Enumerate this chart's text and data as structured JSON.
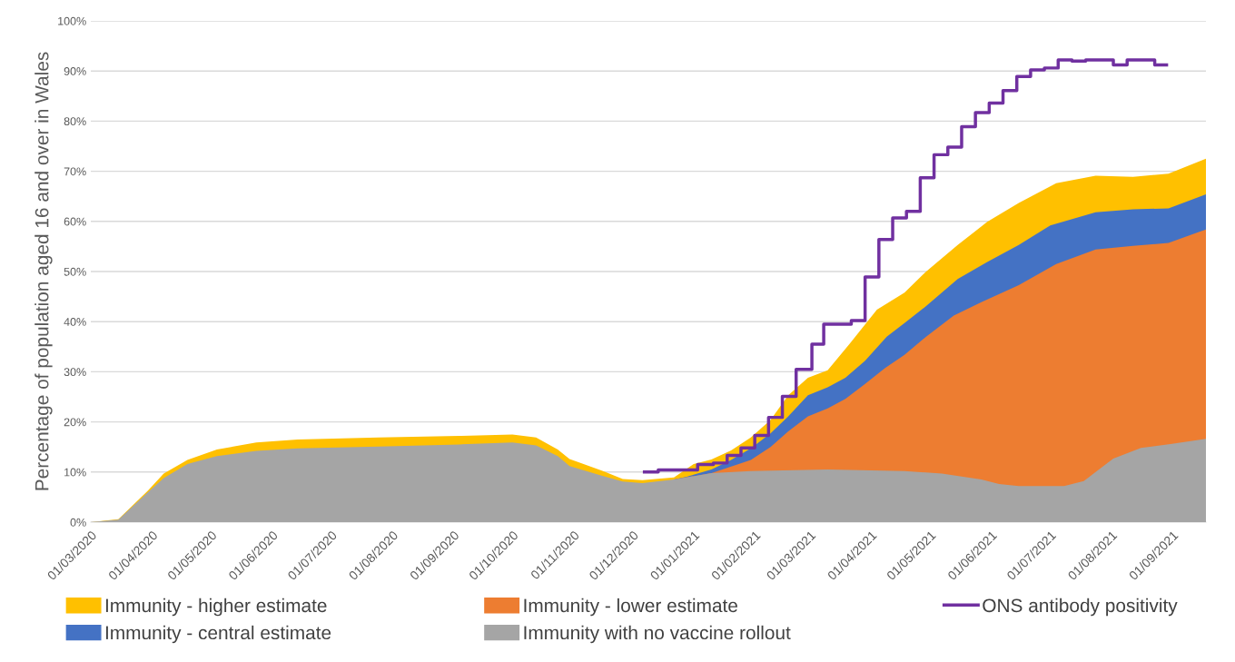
{
  "chart_data": {
    "type": "area",
    "ylabel": "Percentage of population aged 16 and over in Wales",
    "xlim": [
      "2020-03-01",
      "2021-09-18"
    ],
    "xticks": [
      {
        "value": "2020-03-01",
        "label": "01/03/2020"
      },
      {
        "value": "2020-04-01",
        "label": "01/04/2020"
      },
      {
        "value": "2020-05-01",
        "label": "01/05/2020"
      },
      {
        "value": "2020-06-01",
        "label": "01/06/2020"
      },
      {
        "value": "2020-07-01",
        "label": "01/07/2020"
      },
      {
        "value": "2020-08-01",
        "label": "01/08/2020"
      },
      {
        "value": "2020-09-01",
        "label": "01/09/2020"
      },
      {
        "value": "2020-10-01",
        "label": "01/10/2020"
      },
      {
        "value": "2020-11-01",
        "label": "01/11/2020"
      },
      {
        "value": "2020-12-01",
        "label": "01/12/2020"
      },
      {
        "value": "2021-01-01",
        "label": "01/01/2021"
      },
      {
        "value": "2021-02-01",
        "label": "01/02/2021"
      },
      {
        "value": "2021-03-01",
        "label": "01/03/2021"
      },
      {
        "value": "2021-04-01",
        "label": "01/04/2021"
      },
      {
        "value": "2021-05-01",
        "label": "01/05/2021"
      },
      {
        "value": "2021-06-01",
        "label": "01/06/2021"
      },
      {
        "value": "2021-07-01",
        "label": "01/07/2021"
      },
      {
        "value": "2021-08-01",
        "label": "01/08/2021"
      },
      {
        "value": "2021-09-01",
        "label": "01/09/2021"
      }
    ],
    "ylim": [
      0,
      100
    ],
    "yticks": [
      {
        "value": 0,
        "label": "0%"
      },
      {
        "value": 10,
        "label": "10%"
      },
      {
        "value": 20,
        "label": "20%"
      },
      {
        "value": 30,
        "label": "30%"
      },
      {
        "value": 40,
        "label": "40%"
      },
      {
        "value": 50,
        "label": "50%"
      },
      {
        "value": 60,
        "label": "60%"
      },
      {
        "value": 70,
        "label": "70%"
      },
      {
        "value": 80,
        "label": "80%"
      },
      {
        "value": 90,
        "label": "90%"
      },
      {
        "value": 100,
        "label": "100%"
      }
    ],
    "grid": "y",
    "legend": "bottom",
    "series": [
      {
        "name": "Immunity - higher estimate",
        "color": "#ffc000",
        "x": [
          "2020-03-01",
          "2020-03-15",
          "2020-03-30",
          "2020-04-07",
          "2020-04-19",
          "2020-05-04",
          "2020-05-24",
          "2020-06-14",
          "2020-07-25",
          "2020-09-04",
          "2020-10-01",
          "2020-10-13",
          "2020-10-24",
          "2020-10-30",
          "2020-11-16",
          "2020-11-26",
          "2020-12-06",
          "2020-12-22",
          "2021-01-01",
          "2021-01-10",
          "2021-01-20",
          "2021-01-30",
          "2021-02-09",
          "2021-02-18",
          "2021-02-28",
          "2021-03-10",
          "2021-03-21",
          "2021-04-04",
          "2021-04-18",
          "2021-04-29",
          "2021-05-15",
          "2021-05-30",
          "2021-06-15",
          "2021-07-04",
          "2021-07-24",
          "2021-08-12",
          "2021-08-30",
          "2021-09-18"
        ],
        "values": [
          0,
          0.6,
          6.3,
          9.7,
          12.4,
          14.5,
          15.9,
          16.5,
          16.9,
          17.2,
          17.5,
          16.9,
          14.5,
          12.6,
          10.2,
          8.6,
          8.4,
          8.9,
          11.6,
          12.5,
          14.3,
          16.9,
          20.4,
          25.3,
          28.8,
          30.3,
          35.5,
          42.4,
          45.8,
          50.0,
          55.3,
          59.9,
          63.7,
          67.6,
          69.1,
          68.9,
          69.5,
          72.5
        ]
      },
      {
        "name": "Immunity - central estimate",
        "color": "#4472c4",
        "x": [
          "2020-12-22",
          "2020-12-28",
          "2021-01-10",
          "2021-01-20",
          "2021-01-30",
          "2021-02-09",
          "2021-02-18",
          "2021-02-28",
          "2021-03-10",
          "2021-03-19",
          "2021-03-29",
          "2021-04-09",
          "2021-04-18",
          "2021-04-29",
          "2021-05-15",
          "2021-05-30",
          "2021-06-15",
          "2021-07-01",
          "2021-07-24",
          "2021-08-12",
          "2021-08-30",
          "2021-09-18"
        ],
        "values": [
          8.5,
          9.0,
          10.5,
          12.4,
          14.7,
          17.7,
          21.1,
          25.3,
          26.9,
          28.8,
          32.2,
          37.0,
          39.7,
          43.1,
          48.5,
          51.9,
          55.3,
          59.2,
          61.8,
          62.4,
          62.6,
          65.4
        ]
      },
      {
        "name": "Immunity - lower estimate",
        "color": "#ed7d31",
        "x": [
          "2020-12-22",
          "2021-01-10",
          "2021-01-30",
          "2021-02-09",
          "2021-02-18",
          "2021-02-28",
          "2021-03-10",
          "2021-03-19",
          "2021-03-29",
          "2021-04-08",
          "2021-04-18",
          "2021-04-29",
          "2021-05-13",
          "2021-05-27",
          "2021-06-15",
          "2021-07-04",
          "2021-07-24",
          "2021-08-12",
          "2021-08-30",
          "2021-09-18"
        ],
        "values": [
          8.5,
          9.8,
          12.4,
          15.0,
          18.1,
          21.1,
          22.7,
          24.6,
          27.6,
          30.7,
          33.4,
          37.0,
          41.2,
          43.9,
          47.3,
          51.5,
          54.4,
          55.1,
          55.7,
          58.4
        ]
      },
      {
        "name": "Immunity with no vaccine rollout",
        "color": "#a5a5a5",
        "x": [
          "2020-03-01",
          "2020-03-15",
          "2020-03-30",
          "2020-04-07",
          "2020-04-19",
          "2020-05-04",
          "2020-05-24",
          "2020-06-14",
          "2020-07-25",
          "2020-09-04",
          "2020-10-01",
          "2020-10-13",
          "2020-10-24",
          "2020-10-30",
          "2020-11-16",
          "2020-11-26",
          "2020-12-06",
          "2020-12-22",
          "2021-01-10",
          "2021-01-30",
          "2021-03-10",
          "2021-04-18",
          "2021-05-07",
          "2021-05-27",
          "2021-06-05",
          "2021-06-15",
          "2021-07-08",
          "2021-07-18",
          "2021-08-02",
          "2021-08-16",
          "2021-08-31",
          "2021-09-18"
        ],
        "values": [
          0,
          0.5,
          6.0,
          8.8,
          11.6,
          13.2,
          14.2,
          14.7,
          15.1,
          15.5,
          15.9,
          15.3,
          13.2,
          11.2,
          9.2,
          8.1,
          7.8,
          8.5,
          9.8,
          10.2,
          10.5,
          10.2,
          9.7,
          8.5,
          7.6,
          7.2,
          7.2,
          8.2,
          12.7,
          14.8,
          15.6,
          16.6
        ]
      },
      {
        "name": "ONS antibody positivity",
        "type": "step",
        "color": "#7030a0",
        "x": [
          "2020-12-07",
          "2020-12-14",
          "2021-01-03",
          "2021-01-11",
          "2021-01-18",
          "2021-01-25",
          "2021-02-01",
          "2021-02-08",
          "2021-02-15",
          "2021-02-22",
          "2021-03-02",
          "2021-03-08",
          "2021-03-22",
          "2021-03-29",
          "2021-04-05",
          "2021-04-12",
          "2021-04-19",
          "2021-04-26",
          "2021-05-03",
          "2021-05-10",
          "2021-05-17",
          "2021-05-24",
          "2021-05-31",
          "2021-06-07",
          "2021-06-14",
          "2021-06-21",
          "2021-06-28",
          "2021-07-05",
          "2021-07-12",
          "2021-07-19",
          "2021-08-02",
          "2021-08-09",
          "2021-08-23",
          "2021-08-29"
        ],
        "values": [
          10.0,
          10.4,
          11.5,
          11.8,
          13.3,
          14.8,
          17.3,
          20.9,
          25.1,
          30.5,
          35.5,
          39.5,
          40.2,
          48.9,
          56.4,
          60.7,
          62.0,
          68.7,
          73.3,
          74.8,
          78.9,
          81.7,
          83.6,
          86.1,
          88.9,
          90.2,
          90.6,
          92.2,
          92.0,
          92.2,
          91.2,
          92.2,
          91.2,
          91.2
        ]
      }
    ]
  }
}
